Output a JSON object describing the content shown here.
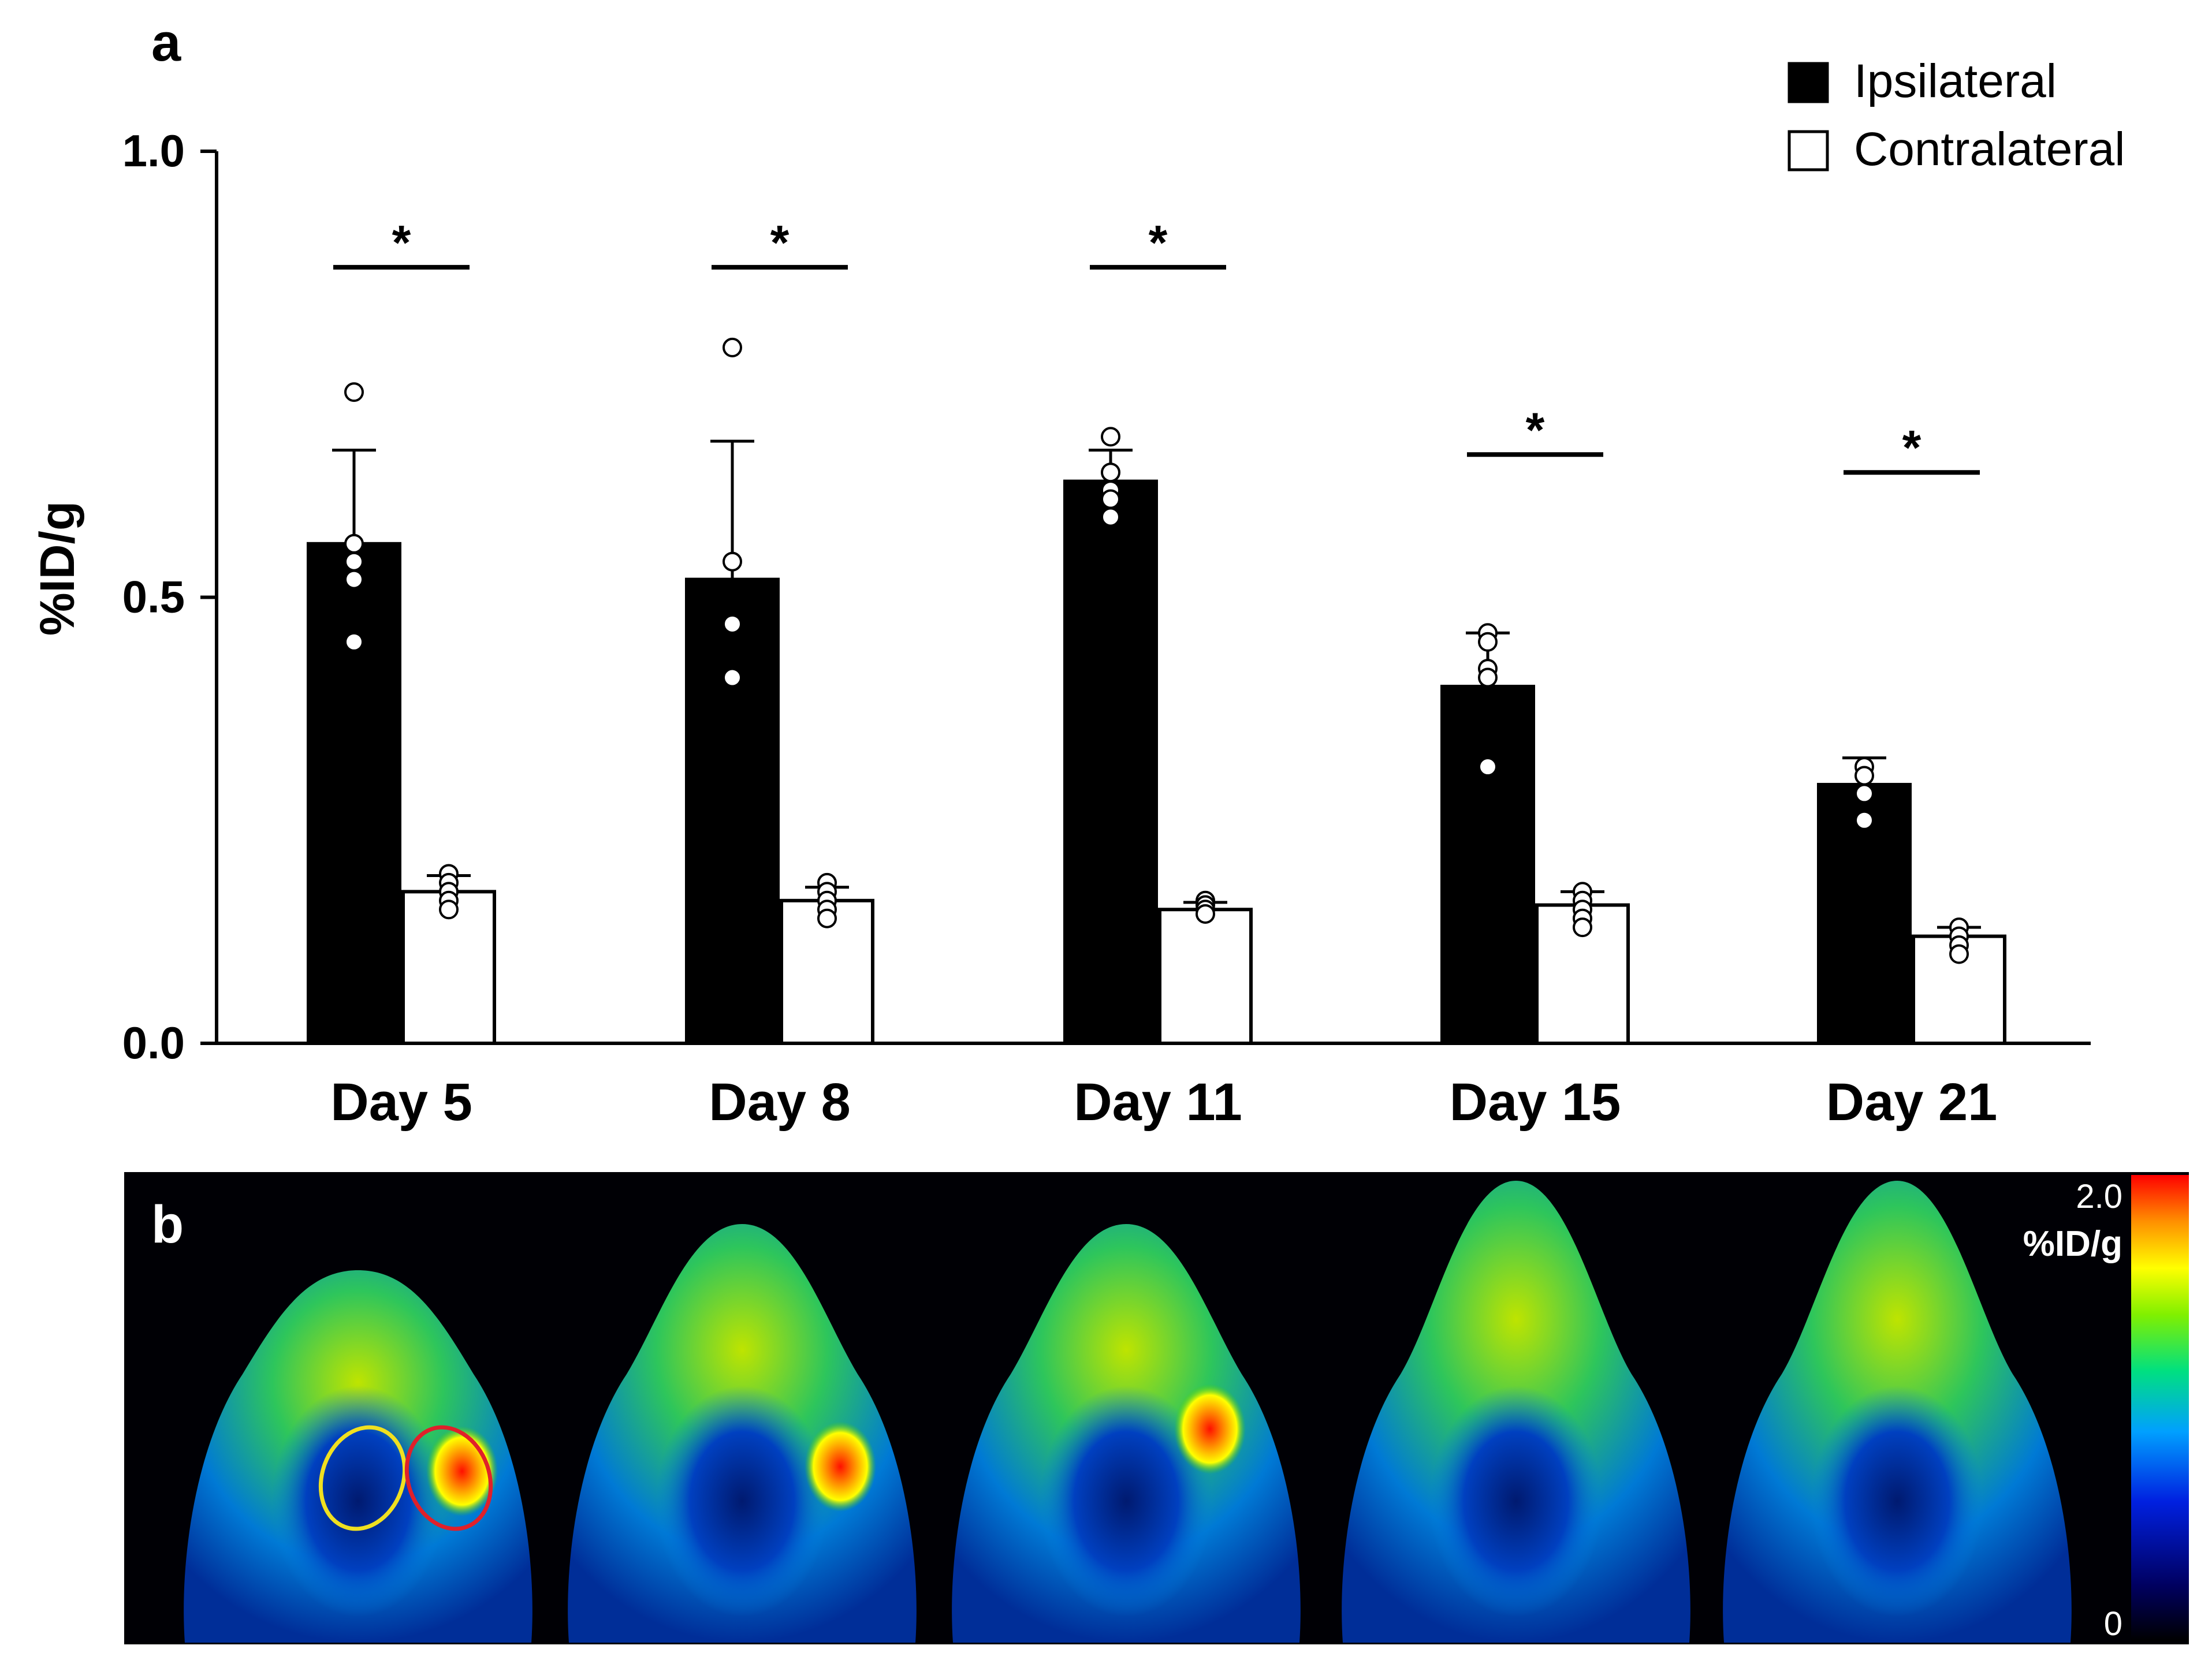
{
  "panel_a": {
    "label": "a"
  },
  "panel_b": {
    "label": "b",
    "colorbar": {
      "max_label": "2.0",
      "unit_label": "%ID/g",
      "min_label": "0"
    },
    "images": [
      "Day 5",
      "Day 8",
      "Day 11",
      "Day 15",
      "Day 21"
    ]
  },
  "colors": {
    "ipsilateral": "#000000",
    "contralateral": "#ffffff",
    "roi_ipsilateral": "#e0202a",
    "roi_contralateral": "#f0e020"
  },
  "chart_data": {
    "type": "bar",
    "title": "",
    "xlabel": "",
    "ylabel": "%ID/g",
    "ylim": [
      0,
      1.0
    ],
    "yticks": [
      0.0,
      0.5,
      1.0
    ],
    "ytick_labels": [
      "0.0",
      "0.5",
      "1.0"
    ],
    "grid": false,
    "legend_position": "top-right",
    "categories": [
      "Day 5",
      "Day 8",
      "Day 11",
      "Day 15",
      "Day 21"
    ],
    "series": [
      {
        "name": "Ipsilateral",
        "color": "#000000",
        "values": [
          0.56,
          0.52,
          0.63,
          0.4,
          0.29
        ],
        "errors": [
          0.105,
          0.155,
          0.035,
          0.06,
          0.03
        ],
        "points": [
          [
            0.73,
            0.56,
            0.54,
            0.52,
            0.45
          ],
          [
            0.78,
            0.54,
            0.47,
            0.41
          ],
          [
            0.68,
            0.64,
            0.62,
            0.61,
            0.59
          ],
          [
            0.46,
            0.45,
            0.42,
            0.41,
            0.31
          ],
          [
            0.31,
            0.3,
            0.28,
            0.25
          ]
        ]
      },
      {
        "name": "Contralateral",
        "color": "#ffffff",
        "values": [
          0.17,
          0.16,
          0.15,
          0.155,
          0.12
        ],
        "errors": [
          0.018,
          0.015,
          0.008,
          0.015,
          0.01
        ],
        "points": [
          [
            0.19,
            0.18,
            0.17,
            0.16,
            0.15
          ],
          [
            0.18,
            0.17,
            0.16,
            0.15,
            0.14
          ],
          [
            0.16,
            0.155,
            0.15,
            0.145
          ],
          [
            0.17,
            0.16,
            0.15,
            0.14,
            0.13
          ],
          [
            0.13,
            0.12,
            0.11,
            0.1
          ]
        ]
      }
    ],
    "significance": [
      {
        "category": "Day 5",
        "label": "*",
        "level": 0.87
      },
      {
        "category": "Day 8",
        "label": "*",
        "level": 0.87
      },
      {
        "category": "Day 11",
        "label": "*",
        "level": 0.87
      },
      {
        "category": "Day 15",
        "label": "*",
        "level": 0.66
      },
      {
        "category": "Day 21",
        "label": "*",
        "level": 0.64
      }
    ]
  }
}
